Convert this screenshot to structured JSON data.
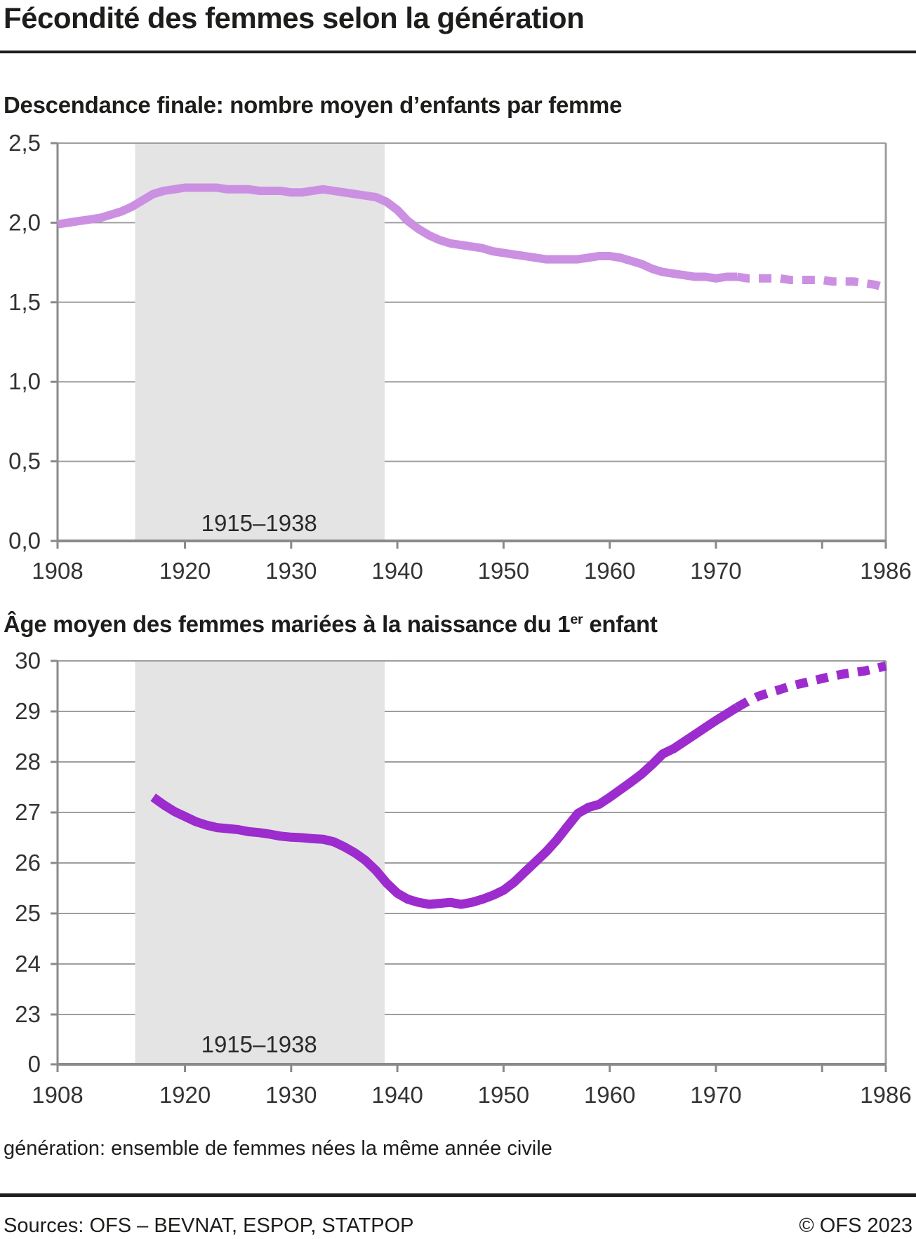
{
  "page": {
    "title": "Fécondité des femmes selon la génération",
    "footnote": "génération: ensemble de femmes nées la même année civile",
    "source_left": "Sources: OFS – BEVNAT, ESPOP, STATPOP",
    "source_right": "© OFS 2023"
  },
  "colors": {
    "line_light_purple": "#cb90e2",
    "line_dark_purple": "#9c2ccd",
    "band": "#e4e4e4",
    "grid": "#9e9e9e",
    "axis": "#8a8a8a",
    "tick_label": "#333333",
    "band_label": "#2a2a2a",
    "text": "#1d1d1b"
  },
  "chart_data": [
    {
      "type": "line",
      "title": "Descendance finale: nombre moyen d’enfants par femme",
      "xlabel": "",
      "ylabel": "",
      "xlim": [
        1908,
        1986
      ],
      "ylim": [
        0,
        2.5
      ],
      "grid": "horizontal",
      "legend": "none",
      "x_ticks_labeled": [
        1908,
        1920,
        1930,
        1940,
        1950,
        1960,
        1970,
        1986
      ],
      "x_ticks_unlabeled": [
        1980
      ],
      "y_ticks": [
        {
          "label": "2,5",
          "value": 2.5
        },
        {
          "label": "2,0",
          "value": 2.0
        },
        {
          "label": "1,5",
          "value": 1.5
        },
        {
          "label": "1,0",
          "value": 1.0
        },
        {
          "label": "0,5",
          "value": 0.5
        },
        {
          "label": "0,0",
          "value": 0.0,
          "on_axis": true
        }
      ],
      "band": {
        "label": "1915–1938",
        "from": 1915.3,
        "to": 1938.8
      },
      "series": [
        {
          "name": "solid",
          "style": "solid",
          "x_start": 1917,
          "x_start_note": "annual values",
          "x_from": 1908,
          "x_to": 1972,
          "values": [
            1.99,
            2.0,
            2.01,
            2.02,
            2.03,
            2.05,
            2.07,
            2.1,
            2.14,
            2.18,
            2.2,
            2.21,
            2.22,
            2.22,
            2.22,
            2.22,
            2.21,
            2.21,
            2.21,
            2.2,
            2.2,
            2.2,
            2.19,
            2.19,
            2.2,
            2.21,
            2.2,
            2.19,
            2.18,
            2.17,
            2.16,
            2.13,
            2.08,
            2.01,
            1.96,
            1.92,
            1.89,
            1.87,
            1.86,
            1.85,
            1.84,
            1.82,
            1.81,
            1.8,
            1.79,
            1.78,
            1.77,
            1.77,
            1.77,
            1.77,
            1.78,
            1.79,
            1.79,
            1.78,
            1.76,
            1.74,
            1.71,
            1.69,
            1.68,
            1.67,
            1.66,
            1.66,
            1.65,
            1.66,
            1.66
          ]
        },
        {
          "name": "dashed",
          "style": "dashed",
          "x_from": 1972,
          "x_to": 1986,
          "values": [
            1.66,
            1.65,
            1.65,
            1.65,
            1.65,
            1.64,
            1.64,
            1.64,
            1.64,
            1.63,
            1.63,
            1.63,
            1.62,
            1.61,
            1.59
          ]
        }
      ]
    },
    {
      "type": "line",
      "title": "Âge moyen des femmes mariées à la naissance du 1er enfant",
      "title_parts": {
        "prefix": "Âge moyen des femmes mariées à la naissance du 1",
        "sup": "er",
        "suffix": " enfant"
      },
      "xlabel": "",
      "ylabel": "",
      "xlim": [
        1908,
        1986
      ],
      "ylim": [
        0,
        30
      ],
      "y_break": {
        "from": 0,
        "to": 23
      },
      "grid": "horizontal",
      "legend": "none",
      "x_ticks_labeled": [
        1908,
        1920,
        1930,
        1940,
        1950,
        1960,
        1970,
        1986
      ],
      "x_ticks_unlabeled": [
        1980
      ],
      "y_ticks": [
        {
          "label": "30",
          "value": 30
        },
        {
          "label": "29",
          "value": 29
        },
        {
          "label": "28",
          "value": 28
        },
        {
          "label": "27",
          "value": 27
        },
        {
          "label": "26",
          "value": 26
        },
        {
          "label": "25",
          "value": 25
        },
        {
          "label": "24",
          "value": 24
        },
        {
          "label": "23",
          "value": 23
        },
        {
          "label": "0",
          "value": 0,
          "on_axis": true
        }
      ],
      "band": {
        "label": "1915–1938",
        "from": 1915.3,
        "to": 1938.8
      },
      "series": [
        {
          "name": "solid",
          "style": "solid",
          "x_from": 1917,
          "x_to": 1972,
          "values": [
            27.3,
            27.15,
            27.02,
            26.92,
            26.82,
            26.75,
            26.7,
            26.68,
            26.66,
            26.62,
            26.6,
            26.57,
            26.53,
            26.51,
            26.5,
            26.48,
            26.47,
            26.42,
            26.32,
            26.2,
            26.05,
            25.85,
            25.6,
            25.4,
            25.28,
            25.22,
            25.18,
            25.2,
            25.22,
            25.18,
            25.22,
            25.28,
            25.36,
            25.46,
            25.62,
            25.82,
            26.02,
            26.22,
            26.45,
            26.72,
            26.98,
            27.1,
            27.16,
            27.3,
            27.45,
            27.6,
            27.76,
            27.95,
            28.16,
            28.26,
            28.4,
            28.54,
            28.68,
            28.82,
            28.95,
            29.08
          ]
        },
        {
          "name": "dashed",
          "style": "dashed",
          "x_from": 1972,
          "x_to": 1986,
          "values": [
            29.08,
            29.2,
            29.3,
            29.37,
            29.43,
            29.5,
            29.55,
            29.6,
            29.65,
            29.7,
            29.74,
            29.77,
            29.8,
            29.85,
            29.9
          ]
        }
      ]
    }
  ]
}
